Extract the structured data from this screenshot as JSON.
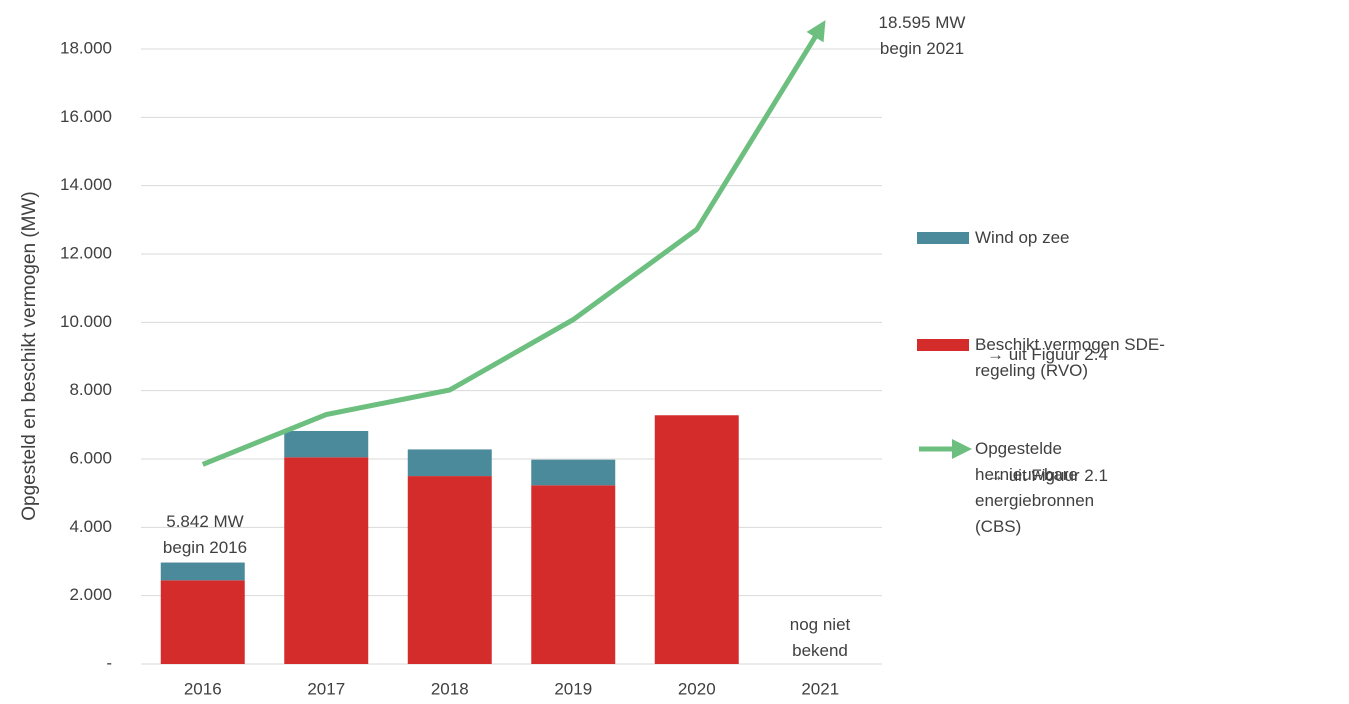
{
  "chart_data": {
    "type": "bar",
    "y_label": "Opgesteld en beschikt vermogen (MW)",
    "categories": [
      "2016",
      "2017",
      "2018",
      "2019",
      "2020",
      "2021"
    ],
    "series": [
      {
        "name": "Beschikt vermogen SDE-regeling (RVO)",
        "color": "#d42b2b",
        "type": "bar",
        "values": [
          2450,
          6050,
          5500,
          5230,
          7280,
          null
        ],
        "note": "→ uit Figuur 2.4"
      },
      {
        "name": "Wind op zee",
        "color": "#4a8a9a",
        "type": "bar",
        "values": [
          520,
          770,
          780,
          750,
          null,
          null
        ]
      },
      {
        "name": "Opgestelde hernieuwbare energiebronnen (CBS)",
        "color": "#6cbf7f",
        "type": "line",
        "values": [
          5842,
          7300,
          8020,
          10080,
          12720,
          18595
        ],
        "note": "→ uit Figuur 2.1"
      }
    ],
    "stacked": true,
    "ylim": [
      0,
      18000
    ],
    "yticks": [
      {
        "value": 0,
        "label": "-"
      },
      {
        "value": 2000,
        "label": "2.000"
      },
      {
        "value": 4000,
        "label": "4.000"
      },
      {
        "value": 6000,
        "label": "6.000"
      },
      {
        "value": 8000,
        "label": "8.000"
      },
      {
        "value": 10000,
        "label": "10.000"
      },
      {
        "value": 12000,
        "label": "12.000"
      },
      {
        "value": 14000,
        "label": "14.000"
      },
      {
        "value": 16000,
        "label": "16.000"
      },
      {
        "value": 18000,
        "label": "18.000"
      }
    ],
    "grid": true,
    "annotations": [
      {
        "text": "5.842 MW begin 2016",
        "category": 0
      },
      {
        "text": "18.595 MW begin 2021",
        "category": 5
      },
      {
        "text": "nog niet bekend",
        "category": 5
      }
    ]
  }
}
